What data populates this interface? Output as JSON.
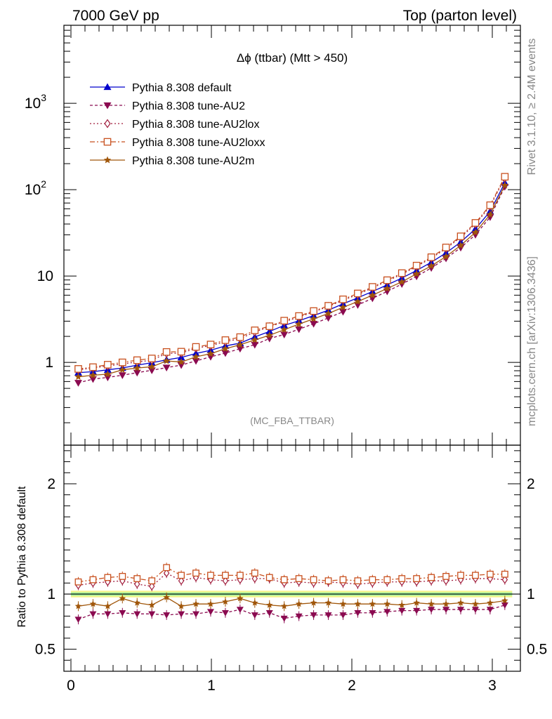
{
  "header": {
    "left": "7000 GeV pp",
    "right": "Top (parton level)"
  },
  "side_text": {
    "rivet": "Rivet 3.1.10, ≥ 2.4M events",
    "mcplots": "mcplots.cern.ch [arXiv:1306.3436]"
  },
  "chart_data": [
    {
      "type": "line",
      "title": "Δϕ (ttbar) (Mtt > 450)",
      "annotation": "(MC_FBA_TTBAR)",
      "xlabel": "",
      "ylabel": "",
      "xlim": [
        -0.05,
        3.2
      ],
      "ylim": [
        0.11,
        8000
      ],
      "y_scale": "log",
      "y_ticks": [
        {
          "value": 1,
          "label": "1"
        },
        {
          "value": 10,
          "label": "10"
        },
        {
          "value": 100,
          "label": "10",
          "exp": "2"
        },
        {
          "value": 1000,
          "label": "10",
          "exp": "3"
        }
      ],
      "legend_position": "top-left",
      "x": [
        0.0524,
        0.1571,
        0.2618,
        0.3665,
        0.4712,
        0.576,
        0.6807,
        0.7854,
        0.8901,
        0.9948,
        1.0996,
        1.2043,
        1.309,
        1.4137,
        1.5184,
        1.6232,
        1.7279,
        1.8326,
        1.9373,
        2.042,
        2.1468,
        2.2515,
        2.3562,
        2.4609,
        2.5656,
        2.6704,
        2.7751,
        2.8798,
        2.9845,
        3.0892
      ],
      "series": [
        {
          "name": "Pythia 8.308 default",
          "color": "#0000cc",
          "marker": "triangle-up",
          "dash": "solid",
          "values": [
            0.76,
            0.78,
            0.82,
            0.86,
            0.93,
            0.99,
            1.07,
            1.14,
            1.27,
            1.38,
            1.55,
            1.67,
            1.97,
            2.28,
            2.68,
            3.03,
            3.48,
            4.02,
            4.76,
            5.59,
            6.61,
            7.89,
            9.46,
            11.6,
            14.4,
            18.5,
            24.7,
            35.1,
            56.0,
            120
          ]
        },
        {
          "name": "Pythia 8.308 tune-AU2",
          "color": "#8b0a50",
          "marker": "triangle-down",
          "dash": "4,3",
          "values": [
            0.58,
            0.64,
            0.67,
            0.71,
            0.76,
            0.81,
            0.87,
            0.93,
            1.04,
            1.16,
            1.28,
            1.44,
            1.6,
            1.89,
            2.1,
            2.42,
            2.8,
            3.27,
            3.86,
            4.62,
            5.51,
            6.63,
            8.07,
            9.9,
            12.4,
            16.0,
            21.3,
            30.0,
            48.0,
            108
          ]
        },
        {
          "name": "Pythia 8.308 tune-AU2lox",
          "color": "#a01c3c",
          "marker": "diamond-open",
          "dash": "2,3",
          "values": [
            0.82,
            0.86,
            0.91,
            0.96,
            1.01,
            1.06,
            1.27,
            1.28,
            1.46,
            1.56,
            1.74,
            1.88,
            2.25,
            2.59,
            2.95,
            3.35,
            3.84,
            4.44,
            5.25,
            6.1,
            7.29,
            8.73,
            10.5,
            12.9,
            16.1,
            20.8,
            28.0,
            40.0,
            64.0,
            136
          ]
        },
        {
          "name": "Pythia 8.308 tune-AU2loxx",
          "color": "#c8501e",
          "marker": "square-open",
          "dash": "7,3,2,3",
          "values": [
            0.84,
            0.88,
            0.94,
            1.0,
            1.06,
            1.11,
            1.32,
            1.33,
            1.51,
            1.61,
            1.81,
            1.96,
            2.35,
            2.62,
            3.04,
            3.44,
            3.93,
            4.52,
            5.37,
            6.28,
            7.48,
            8.94,
            10.8,
            13.2,
            16.5,
            21.4,
            28.8,
            41.2,
            66.0,
            141
          ]
        },
        {
          "name": "Pythia 8.308 tune-AU2m",
          "color": "#a0560a",
          "marker": "star",
          "dash": "solid",
          "values": [
            0.68,
            0.71,
            0.73,
            0.82,
            0.86,
            0.89,
            1.04,
            1.01,
            1.16,
            1.26,
            1.44,
            1.6,
            1.82,
            2.06,
            2.39,
            2.77,
            3.19,
            3.68,
            4.34,
            5.06,
            6.0,
            7.18,
            8.55,
            10.6,
            13.1,
            16.8,
            22.6,
            32.0,
            51.5,
            112
          ]
        }
      ]
    },
    {
      "type": "line",
      "title": "",
      "xlabel": "",
      "ylabel": "Ratio to Pythia 8.308 default",
      "xlim": [
        -0.05,
        3.2
      ],
      "ylim": [
        0.3,
        2.35
      ],
      "x_ticks": [
        0,
        1,
        2,
        3
      ],
      "y_ticks": [
        0.5,
        1,
        2
      ],
      "reference_line": 1,
      "x": [
        0.0524,
        0.1571,
        0.2618,
        0.3665,
        0.4712,
        0.576,
        0.6807,
        0.7854,
        0.8901,
        0.9948,
        1.0996,
        1.2043,
        1.309,
        1.4137,
        1.5184,
        1.6232,
        1.7279,
        1.8326,
        1.9373,
        2.042,
        2.1468,
        2.2515,
        2.3562,
        2.4609,
        2.5656,
        2.6704,
        2.7751,
        2.8798,
        2.9845,
        3.0892
      ],
      "series": [
        {
          "name": "Pythia 8.308 tune-AU2",
          "color": "#8b0a50",
          "marker": "triangle-down",
          "dash": "4,3",
          "values": [
            0.77,
            0.82,
            0.82,
            0.83,
            0.82,
            0.82,
            0.81,
            0.82,
            0.82,
            0.84,
            0.83,
            0.86,
            0.81,
            0.83,
            0.78,
            0.8,
            0.81,
            0.81,
            0.81,
            0.83,
            0.83,
            0.84,
            0.85,
            0.85,
            0.86,
            0.86,
            0.86,
            0.86,
            0.86,
            0.9
          ]
        },
        {
          "name": "Pythia 8.308 tune-AU2lox",
          "color": "#a01c3c",
          "marker": "diamond-open",
          "dash": "2,3",
          "values": [
            1.08,
            1.1,
            1.11,
            1.12,
            1.09,
            1.07,
            1.19,
            1.12,
            1.15,
            1.13,
            1.12,
            1.13,
            1.14,
            1.14,
            1.1,
            1.11,
            1.1,
            1.11,
            1.1,
            1.09,
            1.1,
            1.11,
            1.11,
            1.11,
            1.12,
            1.12,
            1.13,
            1.14,
            1.14,
            1.13
          ]
        },
        {
          "name": "Pythia 8.308 tune-AU2loxx",
          "color": "#c8501e",
          "marker": "square-open",
          "dash": "7,3,2,3",
          "values": [
            1.11,
            1.13,
            1.15,
            1.16,
            1.14,
            1.12,
            1.24,
            1.17,
            1.19,
            1.17,
            1.17,
            1.17,
            1.19,
            1.15,
            1.13,
            1.14,
            1.13,
            1.12,
            1.13,
            1.12,
            1.13,
            1.13,
            1.14,
            1.14,
            1.15,
            1.16,
            1.17,
            1.17,
            1.18,
            1.18
          ]
        },
        {
          "name": "Pythia 8.308 tune-AU2m",
          "color": "#a0560a",
          "marker": "star",
          "dash": "solid",
          "values": [
            0.89,
            0.91,
            0.89,
            0.96,
            0.92,
            0.9,
            0.97,
            0.89,
            0.91,
            0.91,
            0.93,
            0.96,
            0.92,
            0.9,
            0.89,
            0.91,
            0.92,
            0.92,
            0.91,
            0.91,
            0.91,
            0.91,
            0.9,
            0.92,
            0.91,
            0.91,
            0.92,
            0.91,
            0.92,
            0.94
          ]
        }
      ]
    }
  ]
}
